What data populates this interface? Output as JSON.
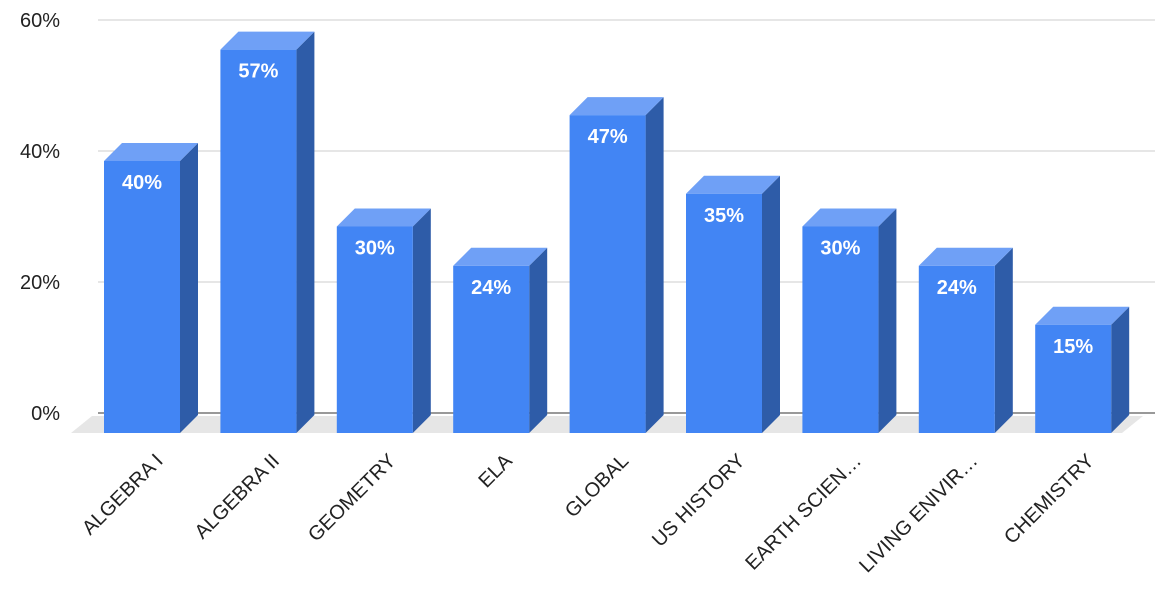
{
  "chart_data": {
    "type": "bar",
    "title": "",
    "xlabel": "",
    "ylabel": "",
    "categories": [
      "ALGEBRA I",
      "ALGEBRA II",
      "GEOMETRY",
      "ELA",
      "GLOBAL",
      "US HISTORY",
      "EARTH SCIEN…",
      "LIVING ENIVIR…",
      "CHEMISTRY"
    ],
    "values": [
      40,
      57,
      30,
      24,
      47,
      35,
      30,
      24,
      15
    ],
    "data_labels": [
      "40%",
      "57%",
      "30%",
      "24%",
      "47%",
      "35%",
      "30%",
      "24%",
      "15%"
    ],
    "ylim": [
      0,
      60
    ],
    "yticks": [
      0,
      20,
      40,
      60
    ],
    "ytick_labels": [
      "0%",
      "20%",
      "40%",
      "60%"
    ],
    "grid": true,
    "legend": "none",
    "style": "3d",
    "colors": {
      "front": "#4285f4",
      "top": "#6fa0f6",
      "side": "#2e5ca8",
      "floor": "#e6e6e6",
      "grid": "#cccccc",
      "axis": "#333333"
    }
  }
}
